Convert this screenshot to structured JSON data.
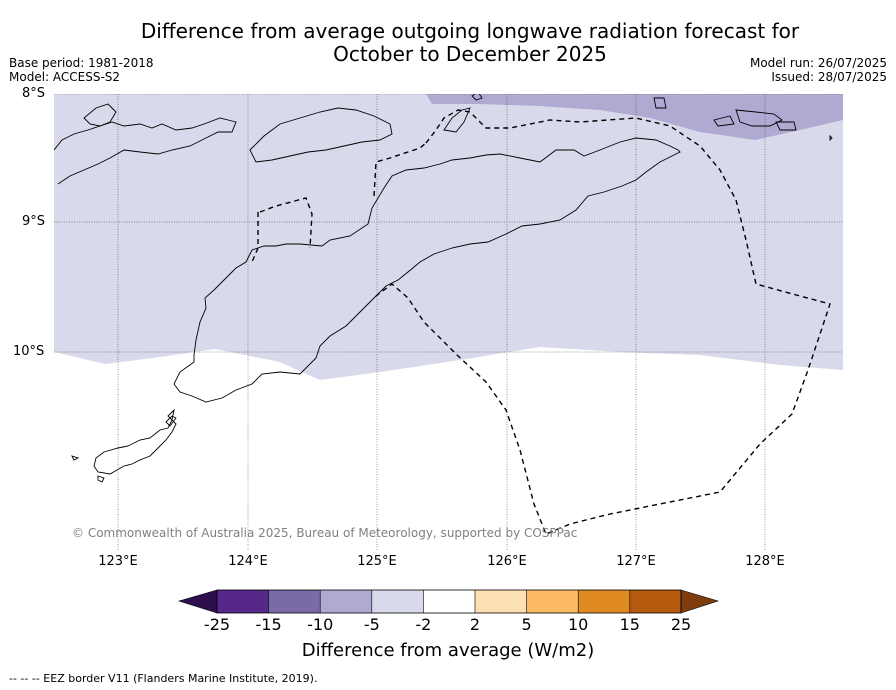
{
  "title": {
    "line1": "Difference from average outgoing longwave radiation forecast for",
    "line2": "October to December 2025"
  },
  "meta": {
    "base_period": "Base period: 1981-2018",
    "model": "Model: ACCESS-S2",
    "model_run": "Model run: 26/07/2025",
    "issued": "Issued: 28/07/2025"
  },
  "map": {
    "lat_labels": [
      "8°S",
      "9°S",
      "10°S"
    ],
    "lon_labels": [
      "123°E",
      "124°E",
      "125°E",
      "126°E",
      "127°E",
      "128°E"
    ],
    "copyright": "© Commonwealth of Australia 2025, Bureau of Meteorology, supported by COSPPac"
  },
  "colorbar": {
    "ticks": [
      "-25",
      "-15",
      "-10",
      "-5",
      "-2",
      "2",
      "5",
      "10",
      "15",
      "25"
    ],
    "colors": [
      "#2d0f4d",
      "#56288a",
      "#7a6aa8",
      "#b0a9d2",
      "#d8d9ea",
      "#ffffff",
      "#fddfb4",
      "#fbb966",
      "#e08a22",
      "#b35a0f",
      "#7d3d0c"
    ],
    "label": "Difference from average (W/m2)"
  },
  "legend": {
    "eez_note": "--  --  -- EEZ border V11 (Flanders Marine Institute, 2019)."
  }
}
